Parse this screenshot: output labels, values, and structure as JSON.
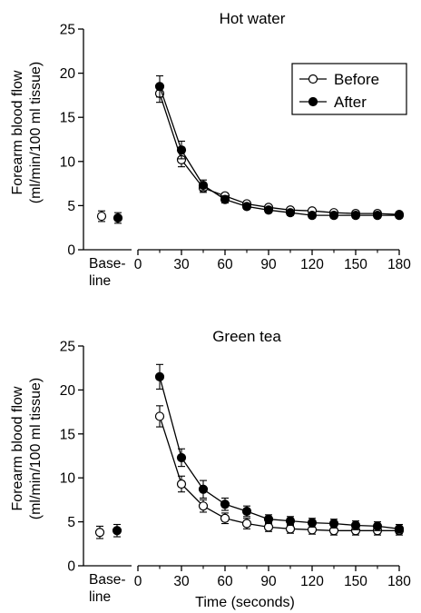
{
  "chart_data": [
    {
      "type": "line",
      "title": "Hot water",
      "ylabel_lines": [
        "Forearm blood flow",
        "(ml/min/100 ml tissue)"
      ],
      "xlabel": "",
      "ylim": [
        0,
        25
      ],
      "yticks": [
        0,
        5,
        10,
        15,
        20,
        25
      ],
      "xlim": [
        0,
        180
      ],
      "xticks": [
        0,
        30,
        60,
        90,
        120,
        150,
        180
      ],
      "baseline_label": [
        "Base-",
        "line"
      ],
      "legend": {
        "position": "top-right",
        "entries": [
          "Before",
          "After"
        ]
      },
      "x": [
        15,
        30,
        45,
        60,
        75,
        90,
        105,
        120,
        135,
        150,
        165,
        180
      ],
      "series": [
        {
          "name": "Before",
          "marker": "open",
          "baseline": 3.8,
          "baseline_err": 0.6,
          "values": [
            17.7,
            10.2,
            7.0,
            6.1,
            5.2,
            4.8,
            4.5,
            4.4,
            4.2,
            4.1,
            4.1,
            4.0
          ],
          "errors": [
            1.0,
            0.8,
            0.5,
            0.3,
            0.3,
            0.2,
            0.2,
            0.2,
            0.2,
            0.2,
            0.2,
            0.2
          ]
        },
        {
          "name": "After",
          "marker": "filled",
          "baseline": 3.6,
          "baseline_err": 0.6,
          "values": [
            18.5,
            11.3,
            7.3,
            5.7,
            4.9,
            4.5,
            4.2,
            3.9,
            3.9,
            3.9,
            3.9,
            3.9
          ],
          "errors": [
            1.2,
            1.0,
            0.6,
            0.4,
            0.3,
            0.3,
            0.3,
            0.3,
            0.3,
            0.3,
            0.3,
            0.3
          ]
        }
      ]
    },
    {
      "type": "line",
      "title": "Green tea",
      "ylabel_lines": [
        "Forearm blood flow",
        "(ml/min/100 ml tissue)"
      ],
      "xlabel": "Time (seconds)",
      "ylim": [
        0,
        25
      ],
      "yticks": [
        0,
        5,
        10,
        15,
        20,
        25
      ],
      "xlim": [
        0,
        180
      ],
      "xticks": [
        0,
        30,
        60,
        90,
        120,
        150,
        180
      ],
      "baseline_label": [
        "Base-",
        "line"
      ],
      "x": [
        15,
        30,
        45,
        60,
        75,
        90,
        105,
        120,
        135,
        150,
        165,
        180
      ],
      "series": [
        {
          "name": "Before",
          "marker": "open",
          "baseline": 3.8,
          "baseline_err": 0.7,
          "values": [
            17.0,
            9.3,
            6.8,
            5.4,
            4.8,
            4.4,
            4.2,
            4.1,
            4.0,
            4.0,
            4.0,
            4.0
          ],
          "errors": [
            1.2,
            0.9,
            0.7,
            0.6,
            0.6,
            0.5,
            0.5,
            0.5,
            0.5,
            0.5,
            0.5,
            0.5
          ]
        },
        {
          "name": "After",
          "marker": "filled",
          "baseline": 4.0,
          "baseline_err": 0.7,
          "values": [
            21.5,
            12.3,
            8.7,
            7.0,
            6.2,
            5.3,
            5.1,
            4.9,
            4.8,
            4.6,
            4.5,
            4.2
          ],
          "errors": [
            1.4,
            1.0,
            1.0,
            0.7,
            0.6,
            0.5,
            0.5,
            0.5,
            0.5,
            0.5,
            0.5,
            0.5
          ]
        }
      ]
    }
  ]
}
